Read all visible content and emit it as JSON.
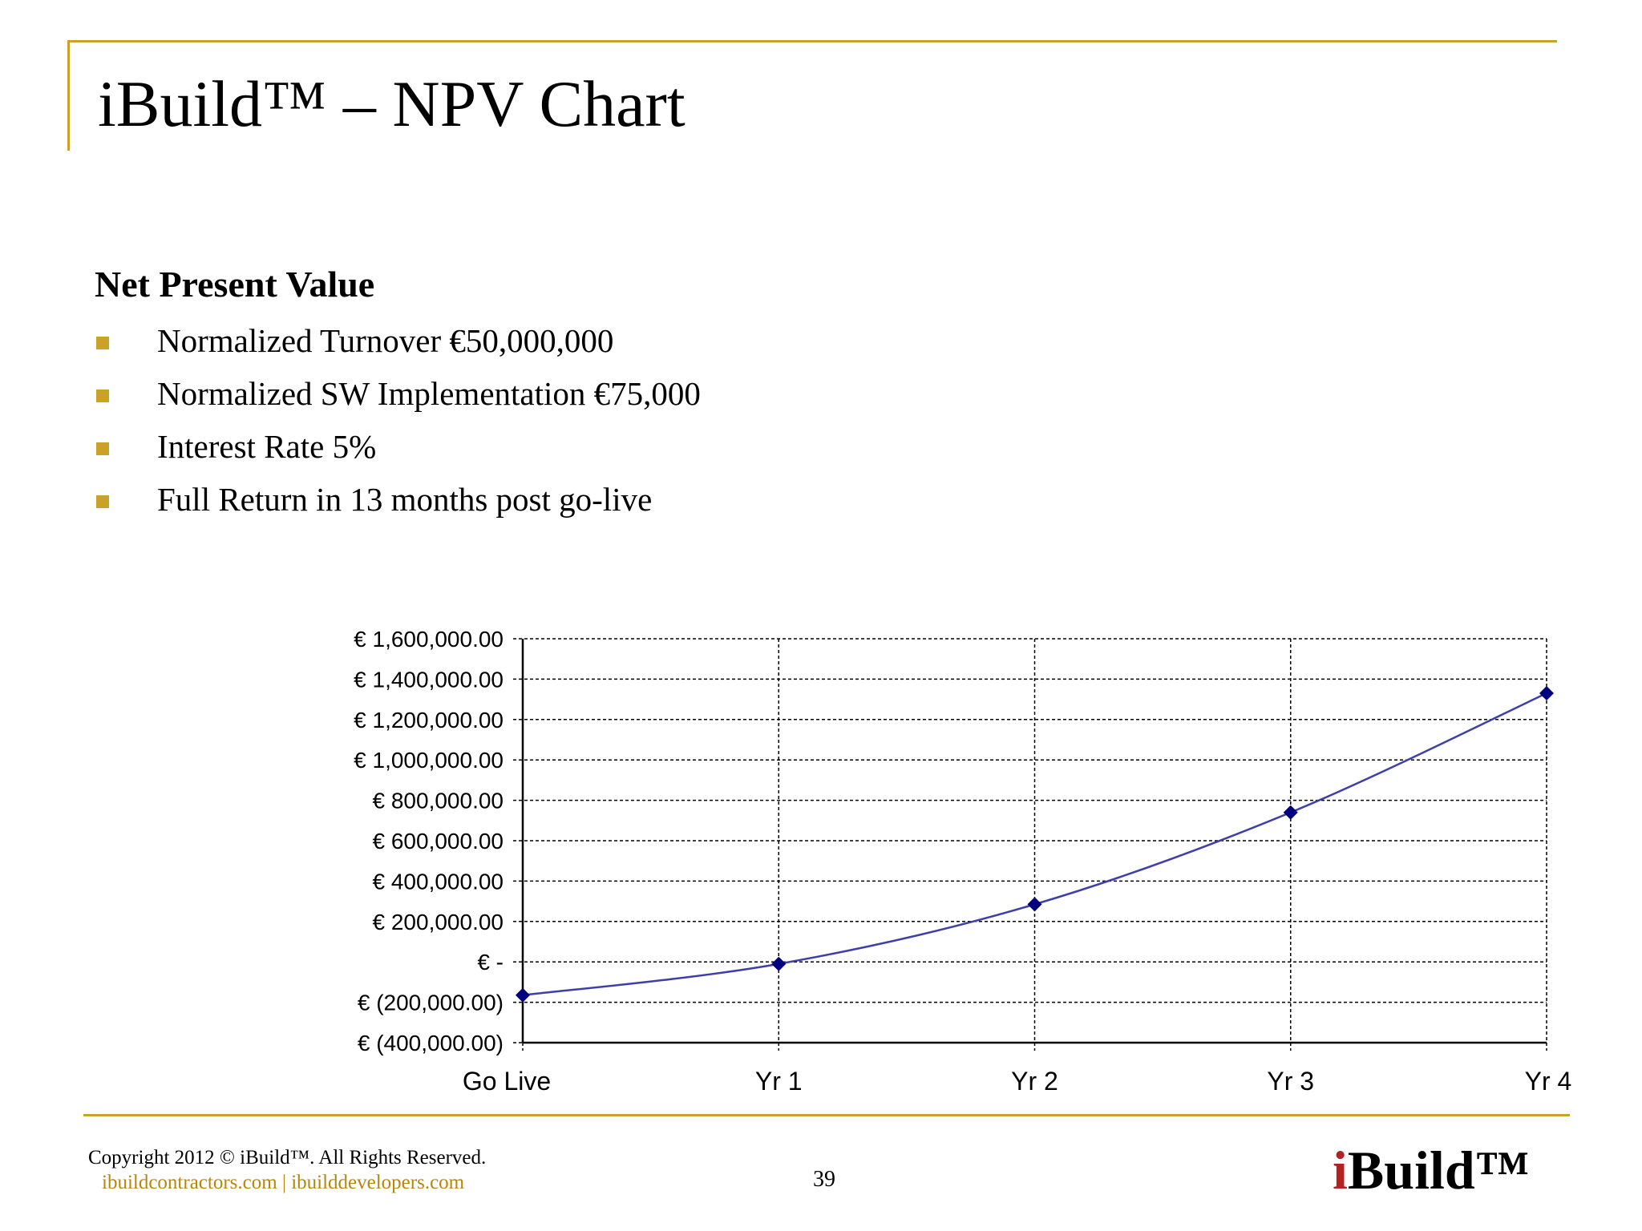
{
  "slide": {
    "title": "iBuild™ – NPV Chart",
    "heading": "Net Present Value",
    "bullets": [
      "Normalized Turnover €50,000,000",
      "Normalized SW Implementation €75,000",
      "Interest Rate 5%",
      "Full Return in 13 months post go-live"
    ]
  },
  "footer": {
    "copyright": "Copyright 2012 ©  iBuild™.  All Rights Reserved.",
    "links": "ibuildcontractors.com  | ibuilddevelopers.com",
    "page_number": "39",
    "logo_prefix": "i",
    "logo_rest": "Build™"
  },
  "colors": {
    "accent": "#c9a227",
    "series": "#3f3fa8",
    "marker": "#000080",
    "logo_red": "#b22222"
  },
  "chart_data": {
    "type": "line",
    "categories": [
      "Go Live",
      "Yr 1",
      "Yr 2",
      "Yr 3",
      "Yr 4"
    ],
    "series": [
      {
        "values": [
          -165000,
          -10000,
          285000,
          740000,
          1330000
        ]
      }
    ],
    "ylim": [
      -400000,
      1600000
    ],
    "yticks": [
      1600000,
      1400000,
      1200000,
      1000000,
      800000,
      600000,
      400000,
      200000,
      0,
      -200000,
      -400000
    ],
    "ytick_labels": [
      "€ 1,600,000.00",
      "€ 1,400,000.00",
      "€ 1,200,000.00",
      "€ 1,000,000.00",
      "€ 800,000.00",
      "€ 600,000.00",
      "€ 400,000.00",
      "€ 200,000.00",
      "€ -",
      "€ (200,000.00)",
      "€ (400,000.00)"
    ],
    "grid": true,
    "legend": "none"
  }
}
